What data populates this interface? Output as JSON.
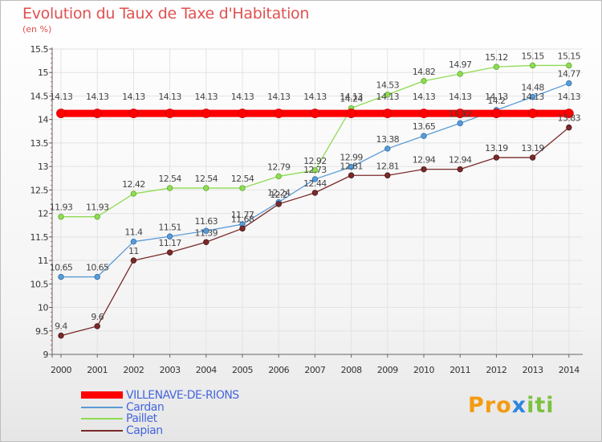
{
  "header": {
    "title": "Evolution du Taux de Taxe d'Habitation",
    "subtitle": "(en %)"
  },
  "logo": {
    "p1": "Pro",
    "p2": "x",
    "p3": "iti"
  },
  "colors": {
    "title": "#e05050",
    "villenave": "#ff0000",
    "cardan": "#5b9bd5",
    "paillet": "#8fdc52",
    "capian": "#7a2a2a",
    "legend_text": "#4466dd",
    "grid": "#e3e3e3",
    "axis": "#666666",
    "axis_tick": "#cc0000"
  },
  "chart_data": {
    "type": "line",
    "title": "Evolution du Taux de Taxe d'Habitation",
    "subtitle": "(en %)",
    "xlabel": "",
    "ylabel": "",
    "ylim": [
      9,
      15.5
    ],
    "grid": true,
    "legend_position": "bottom-left",
    "categories": [
      "2000",
      "2001",
      "2002",
      "2003",
      "2004",
      "2005",
      "2006",
      "2007",
      "2008",
      "2009",
      "2010",
      "2011",
      "2012",
      "2013",
      "2014"
    ],
    "yticks": [
      "9",
      "9.5",
      "10",
      "10.5",
      "11",
      "11.5",
      "12",
      "12.5",
      "13",
      "13.5",
      "14",
      "14.5",
      "15",
      "15.5"
    ],
    "series": [
      {
        "name": "VILLENAVE-DE-RIONS",
        "values": [
          14.13,
          14.13,
          14.13,
          14.13,
          14.13,
          14.13,
          14.13,
          14.13,
          14.13,
          14.13,
          14.13,
          14.13,
          14.13,
          14.13,
          14.13
        ],
        "labels": [
          "14.13",
          "14.13",
          "14.13",
          "14.13",
          "14.13",
          "14.13",
          "14.13",
          "14.13",
          "14.13",
          "14.13",
          "14.13",
          "14.13",
          "14.13",
          "14.13",
          "14.13"
        ]
      },
      {
        "name": "Cardan",
        "values": [
          10.65,
          10.65,
          11.4,
          11.51,
          11.63,
          11.77,
          12.24,
          12.73,
          12.99,
          13.38,
          13.65,
          13.92,
          14.2,
          14.48,
          14.77
        ],
        "labels": [
          "10.65",
          "10.65",
          "11.4",
          "11.51",
          "11.63",
          "11.77",
          "12.24",
          "12.73",
          "12.99",
          "13.38",
          "13.65",
          "13.92",
          "14.2",
          "14.48",
          "14.77"
        ]
      },
      {
        "name": "Paillet",
        "values": [
          11.93,
          11.93,
          12.42,
          12.54,
          12.54,
          12.54,
          12.79,
          12.92,
          14.24,
          14.53,
          14.82,
          14.97,
          15.12,
          15.15,
          15.15
        ],
        "labels": [
          "11.93",
          "11.93",
          "12.42",
          "12.54",
          "12.54",
          "12.54",
          "12.79",
          "12.92",
          "14.24",
          "14.53",
          "14.82",
          "14.97",
          "15.12",
          "15.15",
          "15.15"
        ]
      },
      {
        "name": "Capian",
        "values": [
          9.4,
          9.6,
          11,
          11.17,
          11.39,
          11.68,
          12.2,
          12.44,
          12.81,
          12.81,
          12.94,
          12.94,
          13.19,
          13.19,
          13.83
        ],
        "labels": [
          "9.4",
          "9.6",
          "11",
          "11.17",
          "11.39",
          "11.68",
          "12.2",
          "12.44",
          "12.81",
          "12.81",
          "12.94",
          "12.94",
          "13.19",
          "13.19",
          "13.83"
        ]
      }
    ]
  }
}
